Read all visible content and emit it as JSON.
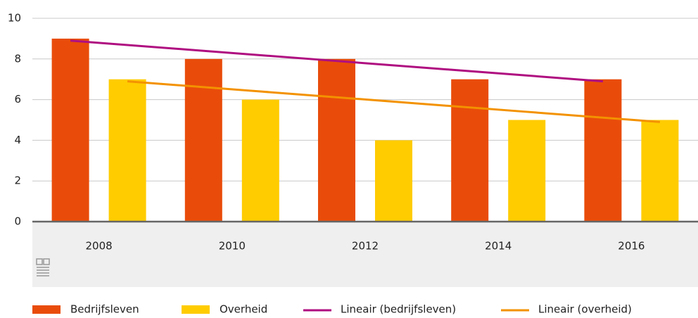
{
  "chart_data": {
    "type": "bar",
    "categories": [
      "2008",
      "2010",
      "2012",
      "2014",
      "2016"
    ],
    "series": [
      {
        "name": "Bedrijfsleven",
        "color": "#e94c0a",
        "type": "bar",
        "values": [
          9,
          8,
          8,
          7,
          7
        ]
      },
      {
        "name": "Overheid",
        "color": "#ffcc00",
        "type": "bar",
        "values": [
          7,
          6,
          4,
          5,
          5
        ]
      },
      {
        "name": "Lineair (bedrijfsleven)",
        "color": "#af0e80",
        "type": "line",
        "values": [
          8.9,
          8.4,
          7.9,
          7.4,
          6.9
        ]
      },
      {
        "name": "Lineair (overheid)",
        "color": "#f39200",
        "type": "line",
        "values": [
          6.9,
          6.4,
          5.9,
          5.4,
          4.9
        ]
      }
    ],
    "ylim": [
      0,
      10
    ],
    "yticks": [
      0,
      2,
      4,
      6,
      8,
      10
    ],
    "grid": true,
    "legend": "bottom"
  }
}
